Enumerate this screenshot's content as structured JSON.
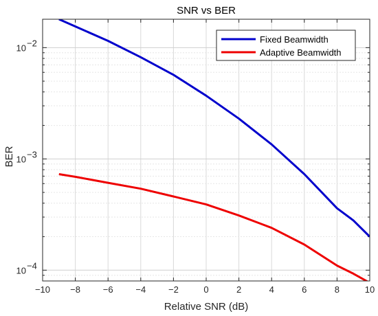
{
  "chart_data": {
    "type": "line",
    "title": "SNR vs BER",
    "xlabel": "Relative SNR (dB)",
    "ylabel": "BER",
    "xlim": [
      -10,
      10
    ],
    "ylim": [
      8e-05,
      0.018
    ],
    "yscale": "log",
    "grid": true,
    "legend_position": "top-right",
    "x_ticks": [
      -10,
      -8,
      -6,
      -4,
      -2,
      0,
      2,
      4,
      6,
      8,
      10
    ],
    "x_tick_labels": [
      "−10",
      "−8",
      "−6",
      "−4",
      "−2",
      "0",
      "2",
      "4",
      "6",
      "8",
      "10"
    ],
    "y_ticks": [
      0.0001,
      0.001,
      0.01
    ],
    "y_tick_labels": [
      {
        "base": "10",
        "exp": "−4"
      },
      {
        "base": "10",
        "exp": "−3"
      },
      {
        "base": "10",
        "exp": "−2"
      }
    ],
    "series": [
      {
        "name": "Fixed Beamwidth",
        "color": "#0000cc",
        "x": [
          -9,
          -8,
          -6,
          -4,
          -2,
          0,
          2,
          4,
          6,
          8,
          9,
          10
        ],
        "y": [
          0.018,
          0.0155,
          0.0115,
          0.0082,
          0.0057,
          0.0037,
          0.0023,
          0.00135,
          0.00073,
          0.00036,
          0.00028,
          0.0002
        ]
      },
      {
        "name": "Adaptive Beamwidth",
        "color": "#ee0000",
        "x": [
          -9,
          -8,
          -6,
          -4,
          -2,
          0,
          2,
          4,
          6,
          8,
          9,
          10
        ],
        "y": [
          0.00073,
          0.00069,
          0.00061,
          0.00054,
          0.00046,
          0.00039,
          0.00031,
          0.00024,
          0.00017,
          0.00011,
          9.3e-05,
          7.7e-05
        ]
      }
    ]
  }
}
